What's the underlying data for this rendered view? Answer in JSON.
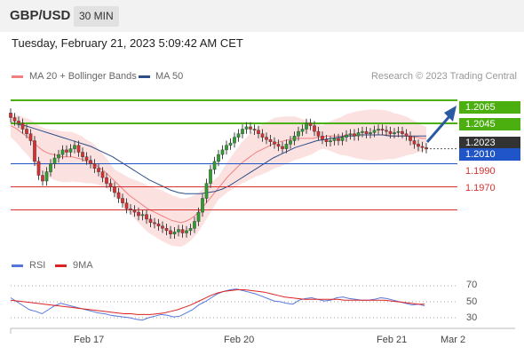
{
  "header": {
    "pair": "GBP/USD",
    "timeframe": "30 MIN"
  },
  "datetime": "Tuesday, February 21, 2023 5:09:42 AM CET",
  "legend": {
    "ma20": {
      "label": "MA 20 + Bollinger Bands",
      "color": "#f08080"
    },
    "ma50": {
      "label": "MA 50",
      "color": "#2c4f8c"
    },
    "rsi": {
      "label": "RSI",
      "color": "#5577dd"
    },
    "rsi_ma": {
      "label": "9MA",
      "color": "#dd2222"
    }
  },
  "credit": "Research © 2023 Trading Central",
  "colors": {
    "up": "#2e9e2e",
    "down": "#d83030",
    "resistance": "#4caf10",
    "support_blue": "#1f55c8",
    "last": "#333333"
  },
  "chart_data": {
    "type": "candlestick",
    "symbol": "GBP/USD",
    "interval": "30 MIN",
    "x_tick_labels": [
      "Feb 17",
      "Feb 20",
      "Feb 21",
      "Mar 2"
    ],
    "ylim": [
      1.1935,
      1.2075
    ],
    "levels": [
      {
        "value": 1.2065,
        "label": "1.2065",
        "style": "green-box"
      },
      {
        "value": 1.2045,
        "label": "1.2045",
        "style": "green-box"
      },
      {
        "value": 1.2023,
        "label": "1.2023",
        "style": "last-price"
      },
      {
        "value": 1.201,
        "label": "1.2010",
        "style": "blue-box"
      },
      {
        "value": 1.199,
        "label": "1.1990",
        "style": "red-text"
      },
      {
        "value": 1.197,
        "label": "1.1970",
        "style": "red-text"
      }
    ],
    "close": [
      1.205,
      1.2047,
      1.2045,
      1.204,
      1.2036,
      1.203,
      1.2012,
      1.2,
      1.1995,
      1.2003,
      1.201,
      1.2015,
      1.2018,
      1.2022,
      1.202,
      1.2023,
      1.2026,
      1.202,
      1.2016,
      1.2013,
      1.201,
      1.2006,
      1.2003,
      1.1998,
      1.1993,
      1.199,
      1.1985,
      1.198,
      1.1976,
      1.1971,
      1.197,
      1.1968,
      1.1965,
      1.1966,
      1.1962,
      1.1959,
      1.1958,
      1.1956,
      1.1954,
      1.1952,
      1.1949,
      1.1951,
      1.1953,
      1.195,
      1.1952,
      1.1954,
      1.196,
      1.1968,
      1.198,
      1.1993,
      1.2005,
      1.2012,
      1.2018,
      1.2022,
      1.2026,
      1.2028,
      1.2033,
      1.2036,
      1.204,
      1.2042,
      1.204,
      1.2039,
      1.2036,
      1.2033,
      1.2031,
      1.2029,
      1.2027,
      1.2025,
      1.2023,
      1.2027,
      1.203,
      1.2034,
      1.2038,
      1.204,
      1.2045,
      1.2043,
      1.2038,
      1.2034,
      1.2031,
      1.2029,
      1.203,
      1.2032,
      1.203,
      1.2033,
      1.2035,
      1.2036,
      1.2034,
      1.2037,
      1.2038,
      1.2036,
      1.2037,
      1.2039,
      1.204,
      1.2039,
      1.2038,
      1.2036,
      1.2037,
      1.2038,
      1.2036,
      1.2034,
      1.203,
      1.2027,
      1.2025,
      1.2024,
      1.2023
    ],
    "ma20": [
      1.2043,
      1.2041,
      1.2038,
      1.2035,
      1.2032,
      1.2028,
      1.2024,
      1.2021,
      1.2019,
      1.2018,
      1.2017,
      1.2016,
      1.2016,
      1.2016,
      1.2015,
      1.2014,
      1.2012,
      1.2011,
      1.2009,
      1.2006,
      1.2003,
      1.1999,
      1.1995,
      1.1991,
      1.1987,
      1.1983,
      1.198,
      1.1977,
      1.1974,
      1.1971,
      1.1969,
      1.1967,
      1.1965,
      1.1963,
      1.1961,
      1.196,
      1.1959,
      1.196,
      1.1962,
      1.1965,
      1.1969,
      1.1974,
      1.1979,
      1.1984,
      1.1989,
      1.1994,
      1.1999,
      1.2003,
      1.2007,
      1.2011,
      1.2014,
      1.2017,
      1.202,
      1.2022,
      1.2024,
      1.2026,
      1.2028,
      1.2029,
      1.203,
      1.2031,
      1.2032,
      1.2032,
      1.2032,
      1.2032,
      1.2032,
      1.2033,
      1.2033,
      1.2034,
      1.2034,
      1.2034,
      1.2034,
      1.2035,
      1.2035,
      1.2035,
      1.2035,
      1.2035,
      1.2035,
      1.2035,
      1.2035,
      1.2035,
      1.2035,
      1.2034,
      1.2034,
      1.2034,
      1.2034,
      1.2033,
      1.2033,
      1.2032,
      1.2032
    ],
    "ma50": [
      1.2046,
      1.2044,
      1.2043,
      1.2041,
      1.2039,
      1.2037,
      1.2035,
      1.2033,
      1.2031,
      1.2029,
      1.2027,
      1.2025,
      1.2022,
      1.2019,
      1.2016,
      1.2012,
      1.2008,
      1.2004,
      1.2,
      1.1996,
      1.1993,
      1.199,
      1.1987,
      1.1985,
      1.1984,
      1.1984,
      1.1984,
      1.1985,
      1.1986,
      1.1988,
      1.1991,
      1.1995,
      1.1999,
      1.2003,
      1.2007,
      1.2011,
      1.2015,
      1.2018,
      1.2021,
      1.2024,
      1.2026,
      1.2028,
      1.203,
      1.2031,
      1.2032,
      1.2033,
      1.2034,
      1.2034,
      1.2035,
      1.2035,
      1.2035,
      1.2035,
      1.2034,
      1.2034,
      1.2034,
      1.2034,
      1.2034,
      1.2034
    ],
    "rsi": {
      "ticks": [
        70,
        50,
        30
      ],
      "ylim": [
        20,
        80
      ],
      "values": [
        55,
        50,
        45,
        40,
        38,
        35,
        40,
        45,
        48,
        46,
        44,
        42,
        40,
        38,
        36,
        35,
        33,
        32,
        31,
        30,
        28,
        27,
        30,
        32,
        34,
        33,
        31,
        32,
        36,
        40,
        46,
        50,
        55,
        60,
        63,
        65,
        66,
        64,
        62,
        60,
        57,
        54,
        51,
        50,
        48,
        47,
        52,
        54,
        55,
        53,
        51,
        52,
        55,
        56,
        54,
        53,
        52,
        52,
        53,
        55,
        54,
        52,
        50,
        48,
        46,
        47,
        45
      ],
      "ma": [
        52,
        51,
        50,
        49,
        48,
        47,
        46,
        45,
        44,
        43,
        42,
        41,
        40,
        39,
        38,
        37,
        36,
        35,
        35,
        34,
        34,
        34,
        35,
        36,
        38,
        40,
        43,
        46,
        50,
        54,
        58,
        61,
        63,
        64,
        65,
        65,
        64,
        63,
        62,
        60,
        58,
        56,
        55,
        54,
        53,
        53,
        53,
        53,
        53,
        53,
        52,
        52,
        52,
        52,
        52,
        52,
        52,
        51,
        50,
        49,
        48,
        47,
        47
      ]
    }
  }
}
